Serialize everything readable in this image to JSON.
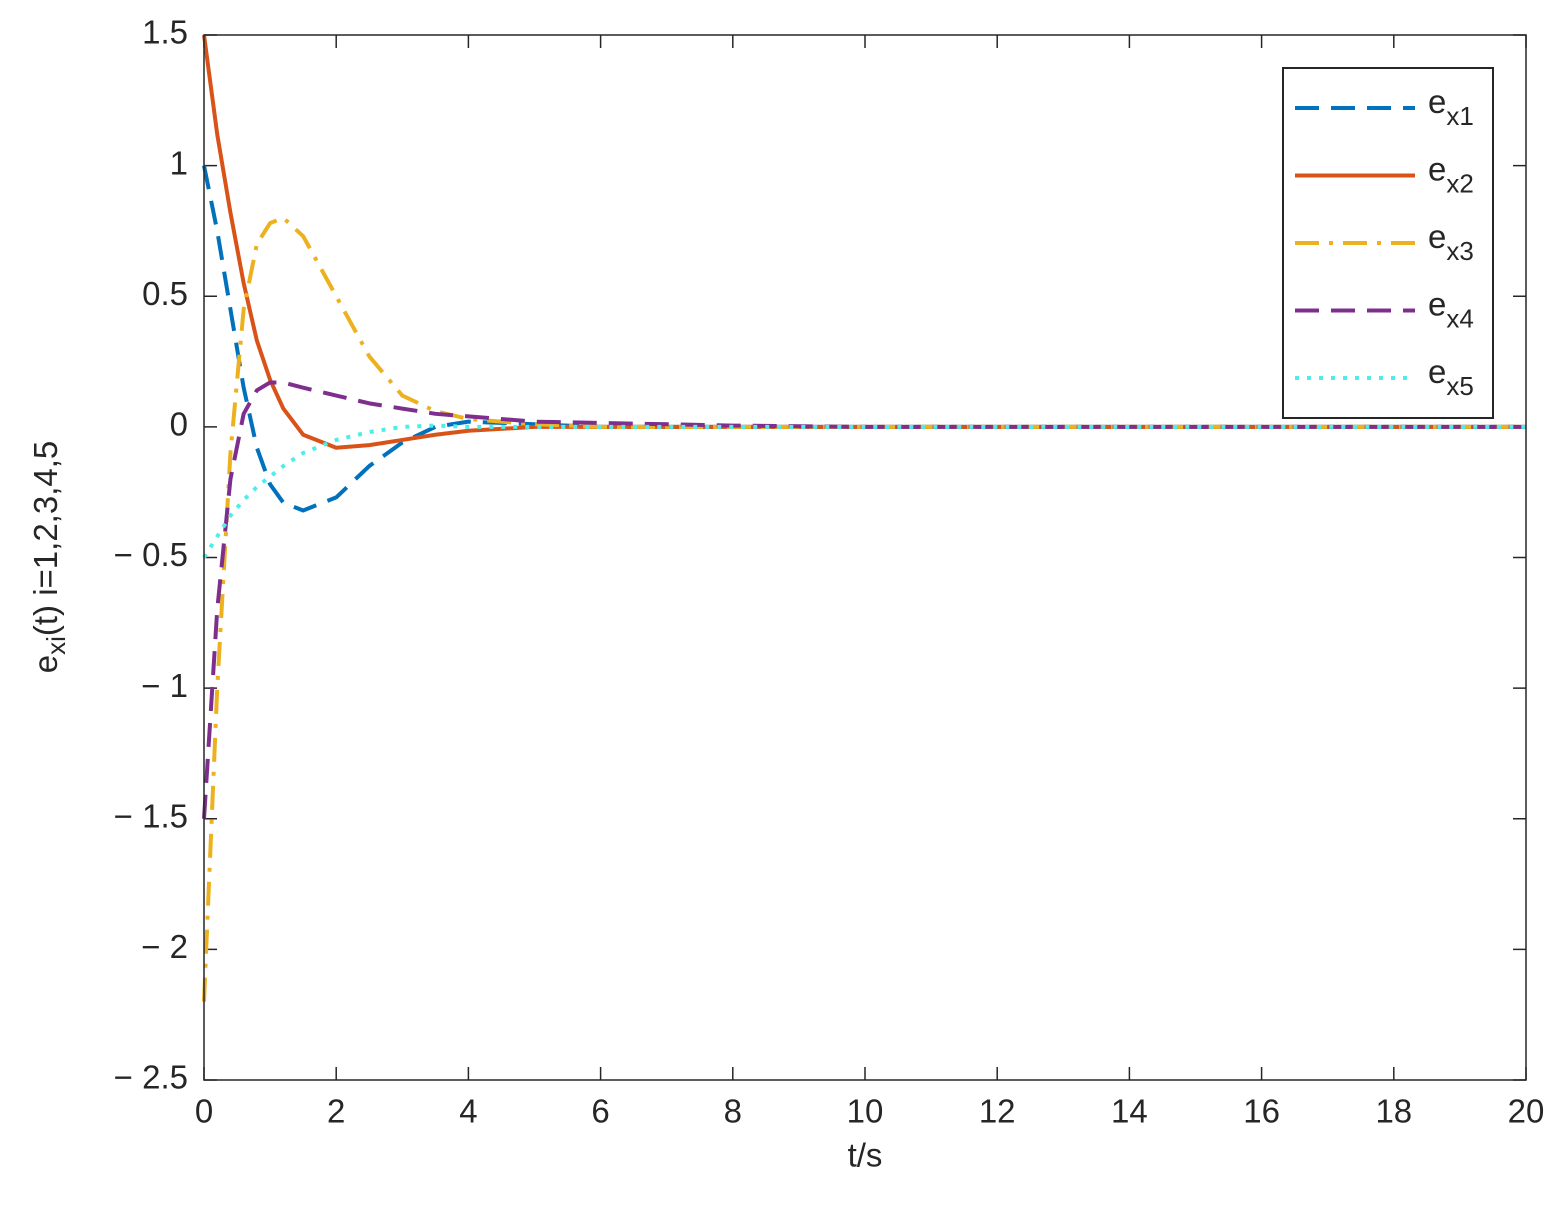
{
  "chart_data": {
    "type": "line",
    "x_label": "t/s",
    "y_label": {
      "text": "e",
      "sub": "xi",
      "rest": "(t) i=1,2,3,4,5"
    },
    "x": [
      0,
      0.2,
      0.4,
      0.6,
      0.8,
      1.0,
      1.2,
      1.5,
      2,
      2.5,
      3,
      3.5,
      4,
      5,
      6,
      8,
      10,
      15,
      20
    ],
    "series": [
      {
        "name": "ex1",
        "color": "#0072BD",
        "style": "dashed",
        "values": [
          1,
          0.75,
          0.45,
          0.15,
          -0.08,
          -0.22,
          -0.29,
          -0.32,
          -0.27,
          -0.15,
          -0.06,
          0,
          0.02,
          0.01,
          0,
          0,
          0,
          0,
          0
        ]
      },
      {
        "name": "ex2",
        "color": "#D95319",
        "style": "solid",
        "values": [
          1.5,
          1.12,
          0.82,
          0.55,
          0.33,
          0.18,
          0.07,
          -0.03,
          -0.08,
          -0.07,
          -0.05,
          -0.03,
          -0.015,
          0,
          0,
          0,
          0,
          0,
          0
        ]
      },
      {
        "name": "ex3",
        "color": "#EDB120",
        "style": "dashdot",
        "values": [
          -2.2,
          -1.0,
          -0.1,
          0.45,
          0.7,
          0.78,
          0.8,
          0.73,
          0.5,
          0.27,
          0.12,
          0.06,
          0.03,
          0.01,
          0,
          0,
          0,
          0,
          0
        ]
      },
      {
        "name": "ex4",
        "color": "#7E2F8E",
        "style": "dashed",
        "values": [
          -1.5,
          -0.7,
          -0.2,
          0.05,
          0.14,
          0.17,
          0.17,
          0.15,
          0.12,
          0.09,
          0.07,
          0.05,
          0.04,
          0.02,
          0.015,
          0.005,
          0,
          0,
          0
        ]
      },
      {
        "name": "ex5",
        "color": "#4DEEEA",
        "style": "dotted",
        "values": [
          -0.5,
          -0.42,
          -0.34,
          -0.28,
          -0.23,
          -0.19,
          -0.15,
          -0.1,
          -0.05,
          -0.02,
          0,
          0.005,
          0,
          0,
          0,
          0,
          0,
          0,
          0
        ]
      }
    ],
    "xlim": [
      0,
      20
    ],
    "xticks": [
      0,
      2,
      4,
      6,
      8,
      10,
      12,
      14,
      16,
      18,
      20
    ],
    "ylim": [
      -2.5,
      1.5
    ],
    "yticks": [
      {
        "value": -2.5,
        "label": "− 2.5"
      },
      {
        "value": -2,
        "label": "− 2"
      },
      {
        "value": -1.5,
        "label": "− 1.5"
      },
      {
        "value": -1,
        "label": "− 1"
      },
      {
        "value": -0.5,
        "label": "− 0.5"
      },
      0,
      0.5,
      1,
      1.5
    ],
    "grid": false,
    "legend": "northeast"
  }
}
